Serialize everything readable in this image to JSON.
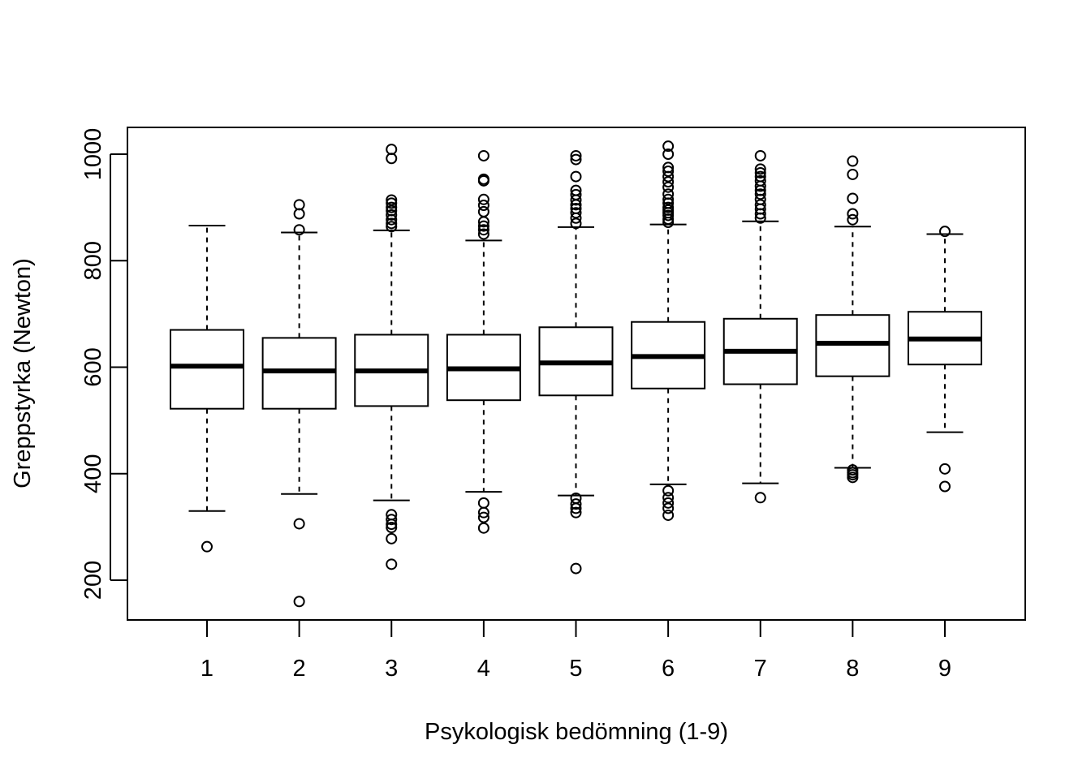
{
  "chart_data": {
    "type": "boxplot",
    "title": "",
    "xlabel": "Psykologisk bedömning (1-9)",
    "ylabel": "Greppstyrka (Newton)",
    "categories": [
      "1",
      "2",
      "3",
      "4",
      "5",
      "6",
      "7",
      "8",
      "9"
    ],
    "ylim": [
      125,
      1050
    ],
    "yticks": [
      200,
      400,
      600,
      800,
      1000
    ],
    "ytick_labels": [
      "200",
      "400",
      "600",
      "800",
      "1000"
    ],
    "grid": false,
    "colors": {
      "stroke": "#000000",
      "fill": "#ffffff"
    },
    "boxes": [
      {
        "category": "1",
        "whisker_low": 330,
        "q1": 522,
        "median": 602,
        "q3": 670,
        "whisker_high": 866,
        "outliers": [
          263
        ]
      },
      {
        "category": "2",
        "whisker_low": 362,
        "q1": 522,
        "median": 593,
        "q3": 655,
        "whisker_high": 853,
        "outliers": [
          905,
          888,
          858,
          306,
          160
        ]
      },
      {
        "category": "3",
        "whisker_low": 350,
        "q1": 527,
        "median": 593,
        "q3": 661,
        "whisker_high": 857,
        "outliers": [
          1009,
          992,
          914,
          908,
          900,
          894,
          886,
          877,
          870,
          864,
          323,
          314,
          305,
          299,
          278,
          230
        ]
      },
      {
        "category": "4",
        "whisker_low": 366,
        "q1": 538,
        "median": 597,
        "q3": 661,
        "whisker_high": 838,
        "outliers": [
          997,
          953,
          950,
          915,
          904,
          892,
          873,
          865,
          858,
          850,
          345,
          327,
          318,
          298
        ]
      },
      {
        "category": "5",
        "whisker_low": 359,
        "q1": 547,
        "median": 608,
        "q3": 675,
        "whisker_high": 863,
        "outliers": [
          997,
          990,
          958,
          932,
          924,
          914,
          905,
          898,
          890,
          880,
          870,
          354,
          343,
          335,
          327,
          222
        ]
      },
      {
        "category": "6",
        "whisker_low": 380,
        "q1": 560,
        "median": 620,
        "q3": 685,
        "whisker_high": 868,
        "outliers": [
          1015,
          1000,
          975,
          968,
          958,
          948,
          938,
          925,
          915,
          908,
          900,
          895,
          890,
          885,
          878,
          872,
          368,
          355,
          345,
          335,
          322
        ]
      },
      {
        "category": "7",
        "whisker_low": 382,
        "q1": 568,
        "median": 630,
        "q3": 691,
        "whisker_high": 874,
        "outliers": [
          997,
          972,
          965,
          958,
          950,
          940,
          932,
          925,
          915,
          905,
          897,
          888,
          880,
          355
        ]
      },
      {
        "category": "8",
        "whisker_low": 411,
        "q1": 583,
        "median": 645,
        "q3": 698,
        "whisker_high": 864,
        "outliers": [
          987,
          962,
          917,
          888,
          877,
          407,
          402,
          398,
          393
        ]
      },
      {
        "category": "9",
        "whisker_low": 478,
        "q1": 605,
        "median": 653,
        "q3": 704,
        "whisker_high": 850,
        "outliers": [
          855,
          409,
          376
        ]
      }
    ]
  }
}
